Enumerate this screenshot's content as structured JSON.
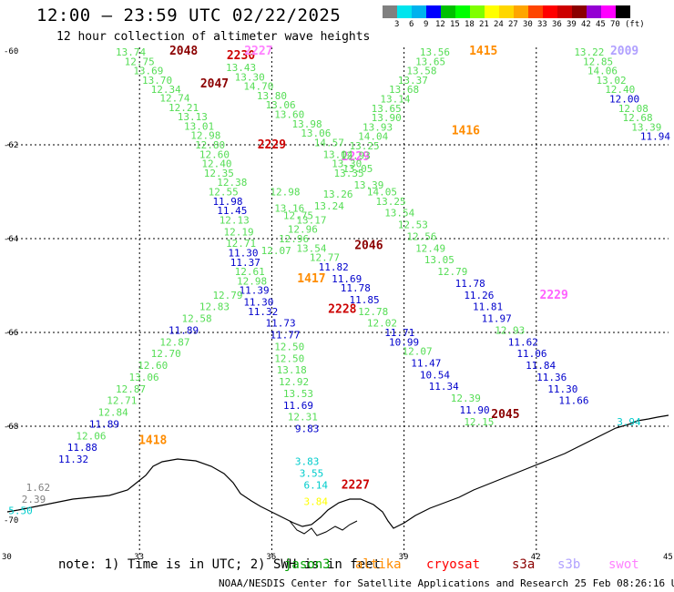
{
  "header": {
    "title": "12:00 – 23:59 UTC 02/22/2025",
    "subtitle": "12 hour collection of altimeter wave heights"
  },
  "colorbar": {
    "colors": [
      "#808080",
      "#00e5ee",
      "#00b2ee",
      "#0000ff",
      "#00c000",
      "#00ff00",
      "#7fff00",
      "#ffff00",
      "#ffd700",
      "#ffa500",
      "#ff4500",
      "#ff0000",
      "#cd0000",
      "#8b0000",
      "#9400d3",
      "#ff00ff",
      "#000000"
    ],
    "labels": [
      "3",
      "6",
      "9",
      "12",
      "15",
      "18",
      "21",
      "24",
      "27",
      "30",
      "33",
      "36",
      "39",
      "42",
      "45",
      "70",
      "(ft)"
    ]
  },
  "axes": {
    "lat_labels": [
      "-60",
      "-62",
      "-64",
      "-66",
      "-68",
      "-70"
    ],
    "lon_labels": [
      "30",
      "33",
      "36",
      "39",
      "42",
      "45"
    ]
  },
  "legend": {
    "note": "note: 1) Time is in UTC; 2) SWH is in feet",
    "satellites": [
      {
        "name": "jason3",
        "color": "#00a000"
      },
      {
        "name": "altika",
        "color": "#ff8c00"
      },
      {
        "name": "cryosat",
        "color": "#ff0000"
      },
      {
        "name": "s3a",
        "color": "#8b0000"
      },
      {
        "name": "s3b",
        "color": "#b0a0ff"
      },
      {
        "name": "swot",
        "color": "#ff80ff"
      }
    ]
  },
  "credit": "NOAA/NESDIS Center for Satellite Applications and Research    25 Feb 08:26:16 UTC 2025",
  "map_labels": [
    {
      "t": "2048",
      "lon": 34.0,
      "lat": -60.0,
      "c": "#8b0000",
      "time": true
    },
    {
      "t": "2230",
      "lon": 35.3,
      "lat": -60.1,
      "c": "#cc0000",
      "time": true
    },
    {
      "t": "2227",
      "lon": 35.7,
      "lat": -60.0,
      "c": "#ff80ff",
      "time": true
    },
    {
      "t": "2047",
      "lon": 34.7,
      "lat": -60.7,
      "c": "#8b0000",
      "time": true
    },
    {
      "t": "2229",
      "lon": 36.0,
      "lat": -62.0,
      "c": "#cc0000",
      "time": true
    },
    {
      "t": "2229",
      "lon": 37.9,
      "lat": -62.25,
      "c": "#ff60ff",
      "time": true
    },
    {
      "t": "2046",
      "lon": 38.2,
      "lat": -64.15,
      "c": "#8b0000",
      "time": true
    },
    {
      "t": "1417",
      "lon": 36.9,
      "lat": -64.85,
      "c": "#ff8c00",
      "time": true
    },
    {
      "t": "2228",
      "lon": 37.6,
      "lat": -65.5,
      "c": "#cc0000",
      "time": true
    },
    {
      "t": "1415",
      "lon": 40.8,
      "lat": -60.0,
      "c": "#ff8c00",
      "time": true
    },
    {
      "t": "1416",
      "lon": 40.4,
      "lat": -61.7,
      "c": "#ff8c00",
      "time": true
    },
    {
      "t": "2009",
      "lon": 44.0,
      "lat": -60.0,
      "c": "#b0a0ff",
      "time": true
    },
    {
      "t": "2229",
      "lon": 42.4,
      "lat": -65.2,
      "c": "#ff60ff",
      "time": true
    },
    {
      "t": "2045",
      "lon": 41.3,
      "lat": -67.75,
      "c": "#8b0000",
      "time": true
    },
    {
      "t": "1418",
      "lon": 33.3,
      "lat": -68.3,
      "c": "#ff8c00",
      "time": true
    },
    {
      "t": "2227",
      "lon": 37.9,
      "lat": -69.25,
      "c": "#cc0000",
      "time": true
    },
    {
      "t": "13.74",
      "lon": 32.8,
      "lat": -60.02,
      "c": "#55dd55"
    },
    {
      "t": "12.75",
      "lon": 33.0,
      "lat": -60.22,
      "c": "#55dd55"
    },
    {
      "t": "13.69",
      "lon": 33.2,
      "lat": -60.42,
      "c": "#55dd55"
    },
    {
      "t": "13.70",
      "lon": 33.4,
      "lat": -60.62,
      "c": "#55dd55"
    },
    {
      "t": "12.34",
      "lon": 33.6,
      "lat": -60.82,
      "c": "#55dd55"
    },
    {
      "t": "12.74",
      "lon": 33.8,
      "lat": -61.0,
      "c": "#55dd55"
    },
    {
      "t": "12.21",
      "lon": 34.0,
      "lat": -61.2,
      "c": "#55dd55"
    },
    {
      "t": "13.13",
      "lon": 34.2,
      "lat": -61.4,
      "c": "#55dd55"
    },
    {
      "t": "13.01",
      "lon": 34.35,
      "lat": -61.6,
      "c": "#55dd55"
    },
    {
      "t": "12.98",
      "lon": 34.5,
      "lat": -61.8,
      "c": "#55dd55"
    },
    {
      "t": "12.80",
      "lon": 34.6,
      "lat": -62.0,
      "c": "#55dd55"
    },
    {
      "t": "12.60",
      "lon": 34.7,
      "lat": -62.2,
      "c": "#55dd55"
    },
    {
      "t": "12.40",
      "lon": 34.75,
      "lat": -62.4,
      "c": "#55dd55"
    },
    {
      "t": "12.35",
      "lon": 34.8,
      "lat": -62.6,
      "c": "#55dd55"
    },
    {
      "t": "12.38",
      "lon": 35.1,
      "lat": -62.8,
      "c": "#55dd55"
    },
    {
      "t": "12.55",
      "lon": 34.9,
      "lat": -63.0,
      "c": "#55dd55"
    },
    {
      "t": "11.98",
      "lon": 35.0,
      "lat": -63.2,
      "c": "#0000cc"
    },
    {
      "t": "11.45",
      "lon": 35.1,
      "lat": -63.4,
      "c": "#0000cc"
    },
    {
      "t": "12.13",
      "lon": 35.15,
      "lat": -63.6,
      "c": "#55dd55"
    },
    {
      "t": "12.19",
      "lon": 35.25,
      "lat": -63.85,
      "c": "#55dd55"
    },
    {
      "t": "12.71",
      "lon": 35.3,
      "lat": -64.1,
      "c": "#55dd55"
    },
    {
      "t": "11.30",
      "lon": 35.35,
      "lat": -64.3,
      "c": "#0000cc"
    },
    {
      "t": "11.37",
      "lon": 35.4,
      "lat": -64.5,
      "c": "#0000cc"
    },
    {
      "t": "12.61",
      "lon": 35.5,
      "lat": -64.7,
      "c": "#55dd55"
    },
    {
      "t": "12.98",
      "lon": 35.55,
      "lat": -64.9,
      "c": "#55dd55"
    },
    {
      "t": "11.39",
      "lon": 35.6,
      "lat": -65.1,
      "c": "#0000cc"
    },
    {
      "t": "11.30",
      "lon": 35.7,
      "lat": -65.35,
      "c": "#0000cc"
    },
    {
      "t": "11.32",
      "lon": 35.8,
      "lat": -65.55,
      "c": "#0000cc"
    },
    {
      "t": "13.43",
      "lon": 35.3,
      "lat": -60.35,
      "c": "#55dd55"
    },
    {
      "t": "13.30",
      "lon": 35.5,
      "lat": -60.55,
      "c": "#55dd55"
    },
    {
      "t": "14.70",
      "lon": 35.7,
      "lat": -60.75,
      "c": "#55dd55"
    },
    {
      "t": "13.80",
      "lon": 36.0,
      "lat": -60.95,
      "c": "#55dd55"
    },
    {
      "t": "13.06",
      "lon": 36.2,
      "lat": -61.15,
      "c": "#55dd55"
    },
    {
      "t": "13.60",
      "lon": 36.4,
      "lat": -61.35,
      "c": "#55dd55"
    },
    {
      "t": "13.98",
      "lon": 36.8,
      "lat": -61.55,
      "c": "#55dd55"
    },
    {
      "t": "13.06",
      "lon": 37.0,
      "lat": -61.75,
      "c": "#55dd55"
    },
    {
      "t": "14.57",
      "lon": 37.3,
      "lat": -61.95,
      "c": "#55dd55"
    },
    {
      "t": "13.04",
      "lon": 37.5,
      "lat": -62.2,
      "c": "#55dd55"
    },
    {
      "t": "13.30",
      "lon": 37.7,
      "lat": -62.4,
      "c": "#55dd55"
    },
    {
      "t": "13.35",
      "lon": 37.75,
      "lat": -62.6,
      "c": "#55dd55"
    },
    {
      "t": "13.05",
      "lon": 37.95,
      "lat": -62.5,
      "c": "#55dd55"
    },
    {
      "t": "13.39",
      "lon": 38.2,
      "lat": -62.85,
      "c": "#55dd55"
    },
    {
      "t": "13.26",
      "lon": 37.5,
      "lat": -63.05,
      "c": "#55dd55"
    },
    {
      "t": "13.24",
      "lon": 37.3,
      "lat": -63.3,
      "c": "#55dd55"
    },
    {
      "t": "13.17",
      "lon": 36.9,
      "lat": -63.6,
      "c": "#55dd55"
    },
    {
      "t": "12.96",
      "lon": 36.7,
      "lat": -63.8,
      "c": "#55dd55"
    },
    {
      "t": "12.98",
      "lon": 36.3,
      "lat": -63.0,
      "c": "#55dd55"
    },
    {
      "t": "13.16",
      "lon": 36.4,
      "lat": -63.35,
      "c": "#55dd55"
    },
    {
      "t": "12.75",
      "lon": 36.6,
      "lat": -63.5,
      "c": "#55dd55"
    },
    {
      "t": "12.96",
      "lon": 36.5,
      "lat": -64.0,
      "c": "#55dd55"
    },
    {
      "t": "12.07",
      "lon": 36.1,
      "lat": -64.25,
      "c": "#55dd55"
    },
    {
      "t": "13.54",
      "lon": 36.9,
      "lat": -64.2,
      "c": "#55dd55"
    },
    {
      "t": "12.77",
      "lon": 37.2,
      "lat": -64.4,
      "c": "#55dd55"
    },
    {
      "t": "11.82",
      "lon": 37.4,
      "lat": -64.6,
      "c": "#0000cc"
    },
    {
      "t": "11.69",
      "lon": 37.7,
      "lat": -64.85,
      "c": "#0000cc"
    },
    {
      "t": "11.78",
      "lon": 37.9,
      "lat": -65.05,
      "c": "#0000cc"
    },
    {
      "t": "11.85",
      "lon": 38.1,
      "lat": -65.3,
      "c": "#0000cc"
    },
    {
      "t": "12.78",
      "lon": 38.3,
      "lat": -65.55,
      "c": "#55dd55"
    },
    {
      "t": "12.02",
      "lon": 38.5,
      "lat": -65.8,
      "c": "#55dd55"
    },
    {
      "t": "11.71",
      "lon": 38.9,
      "lat": -66.0,
      "c": "#0000cc"
    },
    {
      "t": "10.99",
      "lon": 39.0,
      "lat": -66.2,
      "c": "#0000cc"
    },
    {
      "t": "12.07",
      "lon": 39.3,
      "lat": -66.4,
      "c": "#55dd55"
    },
    {
      "t": "11.47",
      "lon": 39.5,
      "lat": -66.65,
      "c": "#0000cc"
    },
    {
      "t": "10.54",
      "lon": 39.7,
      "lat": -66.9,
      "c": "#0000cc"
    },
    {
      "t": "11.34",
      "lon": 39.9,
      "lat": -67.15,
      "c": "#0000cc"
    },
    {
      "t": "12.39",
      "lon": 40.4,
      "lat": -67.4,
      "c": "#55dd55"
    },
    {
      "t": "11.90",
      "lon": 40.6,
      "lat": -67.65,
      "c": "#0000cc"
    },
    {
      "t": "12.15",
      "lon": 40.7,
      "lat": -67.9,
      "c": "#55dd55"
    },
    {
      "t": "12.79",
      "lon": 35.0,
      "lat": -65.2,
      "c": "#55dd55"
    },
    {
      "t": "12.83",
      "lon": 34.7,
      "lat": -65.45,
      "c": "#55dd55"
    },
    {
      "t": "12.58",
      "lon": 34.3,
      "lat": -65.7,
      "c": "#55dd55"
    },
    {
      "t": "11.89",
      "lon": 34.0,
      "lat": -65.95,
      "c": "#0000cc"
    },
    {
      "t": "12.87",
      "lon": 33.8,
      "lat": -66.2,
      "c": "#55dd55"
    },
    {
      "t": "12.70",
      "lon": 33.6,
      "lat": -66.45,
      "c": "#55dd55"
    },
    {
      "t": "12.60",
      "lon": 33.3,
      "lat": -66.7,
      "c": "#55dd55"
    },
    {
      "t": "13.06",
      "lon": 33.1,
      "lat": -66.95,
      "c": "#55dd55"
    },
    {
      "t": "12.87",
      "lon": 32.8,
      "lat": -67.2,
      "c": "#55dd55"
    },
    {
      "t": "12.71",
      "lon": 32.6,
      "lat": -67.45,
      "c": "#55dd55"
    },
    {
      "t": "12.84",
      "lon": 32.4,
      "lat": -67.7,
      "c": "#55dd55"
    },
    {
      "t": "11.89",
      "lon": 32.2,
      "lat": -67.95,
      "c": "#0000cc"
    },
    {
      "t": "12.06",
      "lon": 31.9,
      "lat": -68.2,
      "c": "#55dd55"
    },
    {
      "t": "11.88",
      "lon": 31.7,
      "lat": -68.45,
      "c": "#0000cc"
    },
    {
      "t": "11.32",
      "lon": 31.5,
      "lat": -68.7,
      "c": "#0000cc"
    },
    {
      "t": "11.73",
      "lon": 36.2,
      "lat": -65.8,
      "c": "#0000cc"
    },
    {
      "t": "11.77",
      "lon": 36.3,
      "lat": -66.05,
      "c": "#0000cc"
    },
    {
      "t": "12.50",
      "lon": 36.4,
      "lat": -66.3,
      "c": "#55dd55"
    },
    {
      "t": "12.50",
      "lon": 36.4,
      "lat": -66.55,
      "c": "#55dd55"
    },
    {
      "t": "13.18",
      "lon": 36.45,
      "lat": -66.8,
      "c": "#55dd55"
    },
    {
      "t": "12.92",
      "lon": 36.5,
      "lat": -67.05,
      "c": "#55dd55"
    },
    {
      "t": "13.53",
      "lon": 36.6,
      "lat": -67.3,
      "c": "#55dd55"
    },
    {
      "t": "11.69",
      "lon": 36.6,
      "lat": -67.55,
      "c": "#0000cc"
    },
    {
      "t": "12.31",
      "lon": 36.7,
      "lat": -67.8,
      "c": "#55dd55"
    },
    {
      "t": "9.83",
      "lon": 36.8,
      "lat": -68.05,
      "c": "#0000cc"
    },
    {
      "t": "13.56",
      "lon": 39.7,
      "lat": -60.02,
      "c": "#55dd55"
    },
    {
      "t": "13.65",
      "lon": 39.6,
      "lat": -60.22,
      "c": "#55dd55"
    },
    {
      "t": "13.58",
      "lon": 39.4,
      "lat": -60.42,
      "c": "#55dd55"
    },
    {
      "t": "13.37",
      "lon": 39.2,
      "lat": -60.62,
      "c": "#55dd55"
    },
    {
      "t": "13.68",
      "lon": 39.0,
      "lat": -60.82,
      "c": "#55dd55"
    },
    {
      "t": "13.14",
      "lon": 38.8,
      "lat": -61.02,
      "c": "#55dd55"
    },
    {
      "t": "13.65",
      "lon": 38.6,
      "lat": -61.22,
      "c": "#55dd55"
    },
    {
      "t": "13.90",
      "lon": 38.6,
      "lat": -61.42,
      "c": "#55dd55"
    },
    {
      "t": "13.93",
      "lon": 38.4,
      "lat": -61.62,
      "c": "#55dd55"
    },
    {
      "t": "14.04",
      "lon": 38.3,
      "lat": -61.82,
      "c": "#55dd55"
    },
    {
      "t": "13.25",
      "lon": 38.1,
      "lat": -62.02,
      "c": "#55dd55"
    },
    {
      "t": "12.93",
      "lon": 37.9,
      "lat": -62.22,
      "c": "#55dd55"
    },
    {
      "t": "14.05",
      "lon": 38.5,
      "lat": -63.0,
      "c": "#55dd55"
    },
    {
      "t": "13.25",
      "lon": 38.7,
      "lat": -63.2,
      "c": "#55dd55"
    },
    {
      "t": "13.54",
      "lon": 38.9,
      "lat": -63.45,
      "c": "#55dd55"
    },
    {
      "t": "12.53",
      "lon": 39.2,
      "lat": -63.7,
      "c": "#55dd55"
    },
    {
      "t": "12.56",
      "lon": 39.4,
      "lat": -63.95,
      "c": "#55dd55"
    },
    {
      "t": "12.49",
      "lon": 39.6,
      "lat": -64.2,
      "c": "#55dd55"
    },
    {
      "t": "13.05",
      "lon": 39.8,
      "lat": -64.45,
      "c": "#55dd55"
    },
    {
      "t": "12.79",
      "lon": 40.1,
      "lat": -64.7,
      "c": "#55dd55"
    },
    {
      "t": "11.78",
      "lon": 40.5,
      "lat": -64.95,
      "c": "#0000cc"
    },
    {
      "t": "11.26",
      "lon": 40.7,
      "lat": -65.2,
      "c": "#0000cc"
    },
    {
      "t": "11.81",
      "lon": 40.9,
      "lat": -65.45,
      "c": "#0000cc"
    },
    {
      "t": "11.97",
      "lon": 41.1,
      "lat": -65.7,
      "c": "#0000cc"
    },
    {
      "t": "12.93",
      "lon": 41.4,
      "lat": -65.95,
      "c": "#55dd55"
    },
    {
      "t": "11.62",
      "lon": 41.7,
      "lat": -66.2,
      "c": "#0000cc"
    },
    {
      "t": "11.06",
      "lon": 41.9,
      "lat": -66.45,
      "c": "#0000cc"
    },
    {
      "t": "11.84",
      "lon": 42.1,
      "lat": -66.7,
      "c": "#0000cc"
    },
    {
      "t": "11.36",
      "lon": 42.35,
      "lat": -66.95,
      "c": "#0000cc"
    },
    {
      "t": "11.30",
      "lon": 42.6,
      "lat": -67.2,
      "c": "#0000cc"
    },
    {
      "t": "11.66",
      "lon": 42.85,
      "lat": -67.45,
      "c": "#0000cc"
    },
    {
      "t": "13.22",
      "lon": 43.2,
      "lat": -60.02,
      "c": "#55dd55"
    },
    {
      "t": "12.85",
      "lon": 43.4,
      "lat": -60.22,
      "c": "#55dd55"
    },
    {
      "t": "14.06",
      "lon": 43.5,
      "lat": -60.42,
      "c": "#55dd55"
    },
    {
      "t": "13.02",
      "lon": 43.7,
      "lat": -60.62,
      "c": "#55dd55"
    },
    {
      "t": "12.40",
      "lon": 43.9,
      "lat": -60.82,
      "c": "#55dd55"
    },
    {
      "t": "12.00",
      "lon": 44.0,
      "lat": -61.02,
      "c": "#0000cc"
    },
    {
      "t": "12.08",
      "lon": 44.2,
      "lat": -61.22,
      "c": "#55dd55"
    },
    {
      "t": "12.68",
      "lon": 44.3,
      "lat": -61.42,
      "c": "#55dd55"
    },
    {
      "t": "13.39",
      "lon": 44.5,
      "lat": -61.62,
      "c": "#55dd55"
    },
    {
      "t": "11.94",
      "lon": 44.7,
      "lat": -61.82,
      "c": "#0000cc"
    },
    {
      "t": "3.94",
      "lon": 44.1,
      "lat": -67.9,
      "c": "#00cccc"
    },
    {
      "t": "3.83",
      "lon": 36.8,
      "lat": -68.75,
      "c": "#00cccc"
    },
    {
      "t": "3.55",
      "lon": 36.9,
      "lat": -69.0,
      "c": "#00cccc"
    },
    {
      "t": "6.14",
      "lon": 37.0,
      "lat": -69.25,
      "c": "#00cccc"
    },
    {
      "t": "1.62",
      "lon": 30.7,
      "lat": -69.3,
      "c": "#808080"
    },
    {
      "t": "2.39",
      "lon": 30.6,
      "lat": -69.55,
      "c": "#808080"
    },
    {
      "t": "5.50",
      "lon": 30.3,
      "lat": -69.8,
      "c": "#00cccc"
    },
    {
      "t": "3.84",
      "lon": 37.0,
      "lat": -69.6,
      "c": "#ffff00"
    }
  ]
}
